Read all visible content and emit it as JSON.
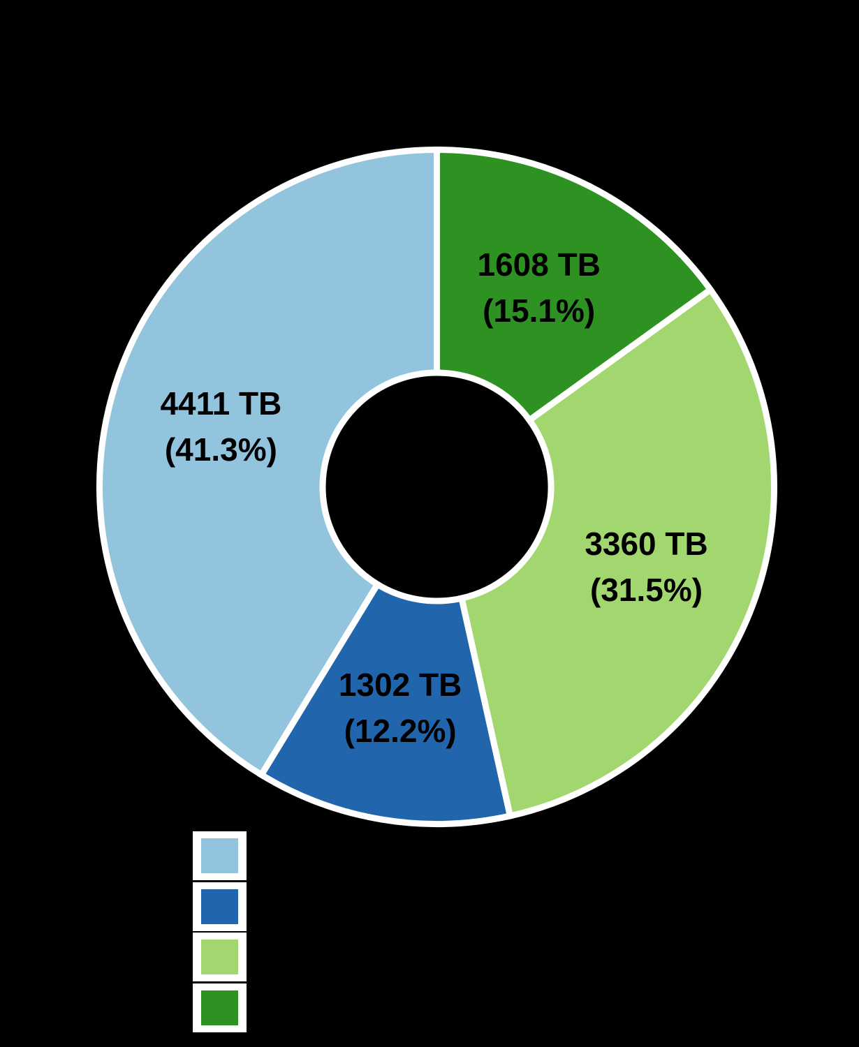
{
  "background_color": "#000000",
  "chart_data": {
    "type": "pie",
    "subtype": "donut",
    "unit": "TB",
    "start_angle_deg": 90,
    "direction": "counterclockwise",
    "slice_border_color": "#ffffff",
    "label_color": "#000000",
    "series": [
      {
        "value": 4411,
        "percent": 41.3,
        "value_label": "4411 TB",
        "percent_label": "(41.3%)",
        "color": "#92c4de"
      },
      {
        "value": 1302,
        "percent": 12.2,
        "value_label": "1302 TB",
        "percent_label": "(12.2%)",
        "color": "#2166ac"
      },
      {
        "value": 3360,
        "percent": 31.5,
        "value_label": "3360 TB",
        "percent_label": "(31.5%)",
        "color": "#a1d76e"
      },
      {
        "value": 1608,
        "percent": 15.1,
        "value_label": "1608 TB",
        "percent_label": "(15.1%)",
        "color": "#2d9222"
      }
    ],
    "legend": {
      "position": "bottom-left",
      "orientation": "vertical",
      "swatch_background": "#ffffff",
      "labels_visible": false,
      "swatch_colors": [
        "#92c4de",
        "#2166ac",
        "#a1d76e",
        "#2d9222"
      ]
    }
  }
}
